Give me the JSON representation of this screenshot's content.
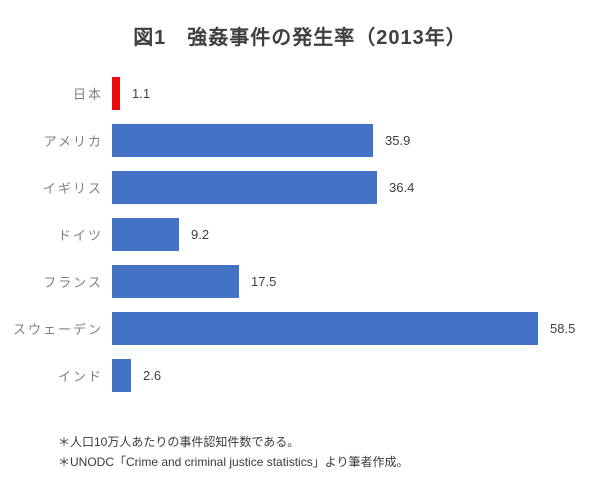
{
  "title": "図1　強姦事件の発生率（2013年）",
  "chart_data": {
    "type": "bar",
    "orientation": "horizontal",
    "title": "図1　強姦事件の発生率（2013年）",
    "categories": [
      "日本",
      "アメリカ",
      "イギリス",
      "ドイツ",
      "フランス",
      "スウェーデン",
      "インド"
    ],
    "values": [
      1.1,
      35.9,
      36.4,
      9.2,
      17.5,
      58.5,
      2.6
    ],
    "value_labels": [
      "1.1",
      "35.9",
      "36.4",
      "9.2",
      "17.5",
      "58.5",
      "2.6"
    ],
    "bar_colors": [
      "#ee0b0b",
      "#4472c4",
      "#4472c4",
      "#4472c4",
      "#4472c4",
      "#4472c4",
      "#4472c4"
    ],
    "xlim": [
      0,
      60
    ],
    "grid": false,
    "legend": false,
    "data_labels": "end-of-bar",
    "highlight": {
      "category": "日本",
      "color": "#ee0b0b"
    },
    "default_bar_color": "#4472c4"
  },
  "footnotes": [
    "＊人口10万人あたりの事件認知件数である。",
    "＊UNODC「Crime and criminal justice statistics」より筆者作成。"
  ],
  "colors": {
    "bar_blue": "#4472c4",
    "bar_red": "#ee0b0b",
    "category_label": "#808080",
    "value_label": "#3f3f3f",
    "title_text": "#3f3f3f"
  }
}
